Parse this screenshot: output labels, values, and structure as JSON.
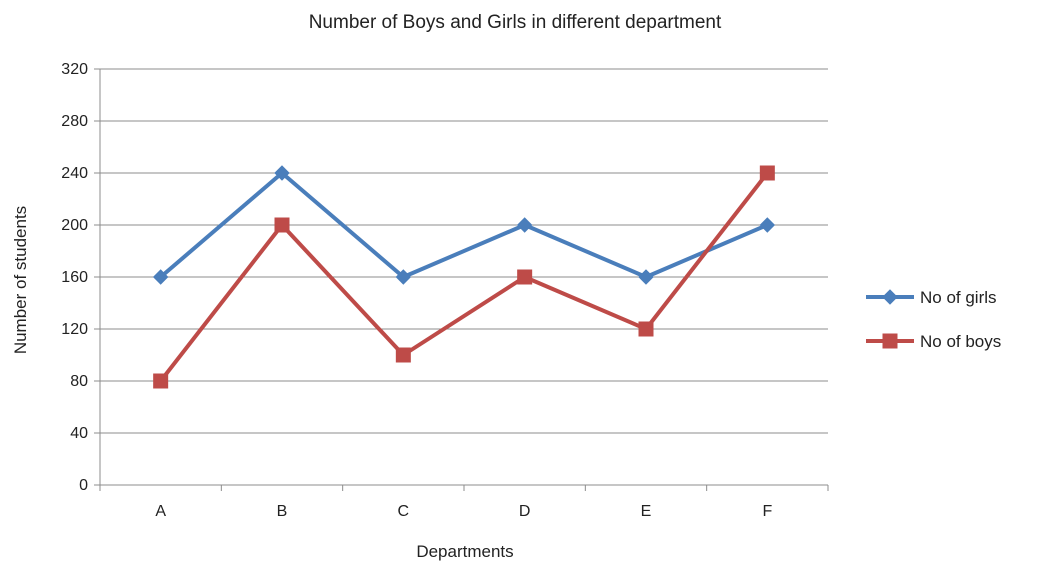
{
  "chart_data": {
    "type": "line",
    "title": "Number of Boys and Girls in different department",
    "xlabel": "Departments",
    "ylabel": "Number of students",
    "categories": [
      "A",
      "B",
      "C",
      "D",
      "E",
      "F"
    ],
    "ylim": [
      0,
      320
    ],
    "yticks": [
      0,
      40,
      80,
      120,
      160,
      200,
      240,
      280,
      320
    ],
    "grid": true,
    "legend_position": "right",
    "series": [
      {
        "name": "No of girls",
        "values": [
          160,
          240,
          160,
          200,
          160,
          200
        ],
        "color": "#4a7ebb",
        "marker": "diamond"
      },
      {
        "name": "No of boys",
        "values": [
          80,
          200,
          100,
          160,
          120,
          240
        ],
        "color": "#be4b48",
        "marker": "square"
      }
    ]
  }
}
